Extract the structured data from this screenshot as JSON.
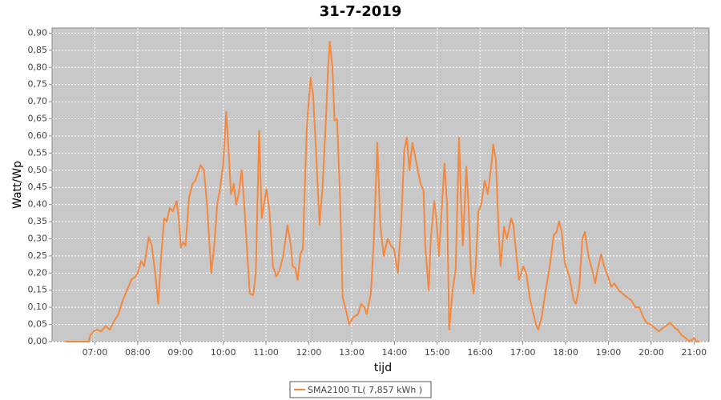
{
  "chart_data": {
    "type": "line",
    "title": "31-7-2019",
    "xlabel": "tijd",
    "ylabel": "Watt/Wp",
    "x": [
      6.31,
      6.85,
      6.9,
      6.97,
      7.05,
      7.15,
      7.25,
      7.35,
      7.45,
      7.55,
      7.65,
      7.75,
      7.85,
      7.95,
      8.0,
      8.08,
      8.15,
      8.26,
      8.33,
      8.41,
      8.48,
      8.55,
      8.62,
      8.68,
      8.75,
      8.82,
      8.91,
      8.96,
      9.01,
      9.06,
      9.12,
      9.2,
      9.28,
      9.35,
      9.47,
      9.55,
      9.62,
      9.72,
      9.79,
      9.86,
      9.93,
      10.0,
      10.07,
      10.12,
      10.18,
      10.25,
      10.3,
      10.36,
      10.43,
      10.48,
      10.54,
      10.62,
      10.7,
      10.76,
      10.84,
      10.9,
      11.01,
      11.08,
      11.16,
      11.24,
      11.32,
      11.4,
      11.5,
      11.58,
      11.62,
      11.68,
      11.74,
      11.8,
      11.86,
      11.95,
      12.04,
      12.1,
      12.17,
      12.25,
      12.32,
      12.4,
      12.45,
      12.49,
      12.55,
      12.6,
      12.66,
      12.73,
      12.79,
      12.87,
      12.94,
      13.03,
      13.15,
      13.22,
      13.3,
      13.35,
      13.45,
      13.52,
      13.6,
      13.67,
      13.75,
      13.84,
      13.92,
      13.99,
      14.08,
      14.16,
      14.23,
      14.29,
      14.35,
      14.42,
      14.51,
      14.61,
      14.68,
      14.72,
      14.8,
      14.85,
      14.93,
      14.98,
      15.04,
      15.17,
      15.23,
      15.28,
      15.36,
      15.43,
      15.51,
      15.56,
      15.6,
      15.68,
      15.73,
      15.79,
      15.85,
      15.9,
      15.96,
      16.03,
      16.11,
      16.18,
      16.26,
      16.31,
      16.37,
      16.45,
      16.48,
      16.56,
      16.63,
      16.73,
      16.78,
      16.86,
      16.91,
      17.01,
      17.08,
      17.16,
      17.23,
      17.31,
      17.36,
      17.44,
      17.51,
      17.63,
      17.72,
      17.79,
      17.85,
      17.91,
      17.98,
      18.09,
      18.19,
      18.24,
      18.32,
      18.39,
      18.45,
      18.54,
      18.62,
      18.69,
      18.75,
      18.83,
      18.9,
      18.99,
      19.07,
      19.14,
      19.24,
      19.33,
      19.43,
      19.54,
      19.63,
      19.72,
      19.82,
      19.89,
      19.99,
      20.08,
      20.18,
      20.27,
      20.34,
      20.44,
      20.55,
      20.62,
      20.7,
      20.81,
      20.89,
      21.0,
      21.07,
      21.13
    ],
    "series": [
      {
        "name": "SMA2100 TL( 7,857 kWh )",
        "color": "#f5883c",
        "values": [
          0,
          0,
          0.02,
          0.03,
          0.035,
          0.03,
          0.045,
          0.035,
          0.06,
          0.08,
          0.12,
          0.15,
          0.18,
          0.19,
          0.2,
          0.235,
          0.22,
          0.305,
          0.28,
          0.2,
          0.11,
          0.25,
          0.36,
          0.35,
          0.39,
          0.38,
          0.41,
          0.36,
          0.275,
          0.29,
          0.28,
          0.42,
          0.46,
          0.47,
          0.515,
          0.5,
          0.4,
          0.2,
          0.28,
          0.4,
          0.45,
          0.52,
          0.67,
          0.57,
          0.43,
          0.46,
          0.4,
          0.43,
          0.5,
          0.42,
          0.3,
          0.14,
          0.135,
          0.2,
          0.615,
          0.36,
          0.445,
          0.38,
          0.22,
          0.19,
          0.21,
          0.25,
          0.34,
          0.28,
          0.22,
          0.215,
          0.18,
          0.255,
          0.27,
          0.62,
          0.77,
          0.72,
          0.55,
          0.34,
          0.45,
          0.65,
          0.8,
          0.875,
          0.8,
          0.645,
          0.65,
          0.42,
          0.13,
          0.09,
          0.05,
          0.07,
          0.08,
          0.11,
          0.1,
          0.08,
          0.14,
          0.3,
          0.58,
          0.34,
          0.25,
          0.3,
          0.28,
          0.27,
          0.2,
          0.35,
          0.56,
          0.595,
          0.5,
          0.58,
          0.525,
          0.46,
          0.44,
          0.28,
          0.15,
          0.3,
          0.41,
          0.36,
          0.25,
          0.52,
          0.4,
          0.035,
          0.15,
          0.21,
          0.595,
          0.39,
          0.28,
          0.51,
          0.4,
          0.2,
          0.14,
          0.22,
          0.38,
          0.4,
          0.47,
          0.43,
          0.51,
          0.575,
          0.53,
          0.28,
          0.22,
          0.335,
          0.3,
          0.36,
          0.34,
          0.24,
          0.18,
          0.22,
          0.2,
          0.13,
          0.09,
          0.05,
          0.035,
          0.07,
          0.13,
          0.22,
          0.31,
          0.32,
          0.35,
          0.32,
          0.23,
          0.19,
          0.12,
          0.11,
          0.16,
          0.3,
          0.32,
          0.245,
          0.21,
          0.17,
          0.21,
          0.255,
          0.22,
          0.19,
          0.16,
          0.17,
          0.15,
          0.14,
          0.13,
          0.12,
          0.1,
          0.1,
          0.07,
          0.055,
          0.05,
          0.04,
          0.03,
          0.04,
          0.045,
          0.055,
          0.04,
          0.035,
          0.02,
          0.01,
          0,
          0.01,
          0,
          0
        ]
      }
    ],
    "xlim": [
      6.0,
      21.35
    ],
    "ylim": [
      0,
      0.915
    ],
    "xticks": [
      {
        "value": 7,
        "label": "07:00"
      },
      {
        "value": 8,
        "label": "08:00"
      },
      {
        "value": 9,
        "label": "09:00"
      },
      {
        "value": 10,
        "label": "10:00"
      },
      {
        "value": 11,
        "label": "11:00"
      },
      {
        "value": 12,
        "label": "12:00"
      },
      {
        "value": 13,
        "label": "13:00"
      },
      {
        "value": 14,
        "label": "14:00"
      },
      {
        "value": 15,
        "label": "15:00"
      },
      {
        "value": 16,
        "label": "16:00"
      },
      {
        "value": 17,
        "label": "17:00"
      },
      {
        "value": 18,
        "label": "18:00"
      },
      {
        "value": 19,
        "label": "19:00"
      },
      {
        "value": 20,
        "label": "20:00"
      },
      {
        "value": 21,
        "label": "21:00"
      }
    ],
    "yticks": [
      {
        "value": 0,
        "label": "0,00"
      },
      {
        "value": 0.05,
        "label": "0,05"
      },
      {
        "value": 0.1,
        "label": "0,10"
      },
      {
        "value": 0.15,
        "label": "0,15"
      },
      {
        "value": 0.2,
        "label": "0,20"
      },
      {
        "value": 0.25,
        "label": "0,25"
      },
      {
        "value": 0.3,
        "label": "0,30"
      },
      {
        "value": 0.35,
        "label": "0,35"
      },
      {
        "value": 0.4,
        "label": "0,40"
      },
      {
        "value": 0.45,
        "label": "0,45"
      },
      {
        "value": 0.5,
        "label": "0,50"
      },
      {
        "value": 0.55,
        "label": "0,55"
      },
      {
        "value": 0.6,
        "label": "0,60"
      },
      {
        "value": 0.65,
        "label": "0,65"
      },
      {
        "value": 0.7,
        "label": "0,70"
      },
      {
        "value": 0.75,
        "label": "0,75"
      },
      {
        "value": 0.8,
        "label": "0,80"
      },
      {
        "value": 0.85,
        "label": "0,85"
      },
      {
        "value": 0.9,
        "label": "0,90"
      }
    ],
    "grid": true,
    "legend": "bottom"
  }
}
